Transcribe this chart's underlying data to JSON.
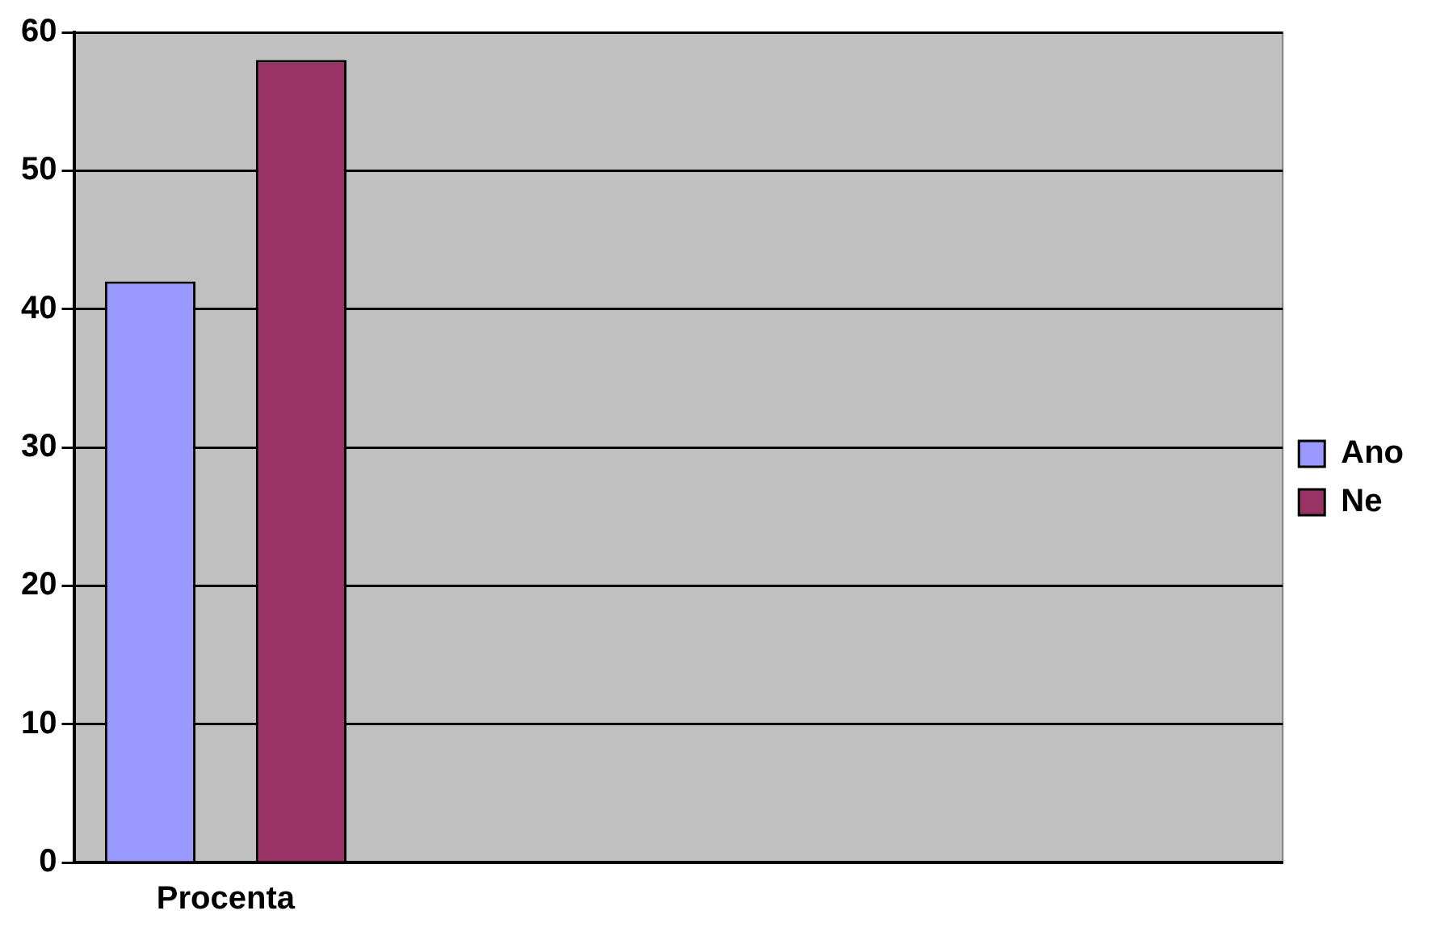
{
  "chart_data": {
    "type": "bar",
    "categories": [
      "Procenta",
      null,
      null,
      null
    ],
    "series": [
      {
        "name": "Ano",
        "color": "#9999ff",
        "values": [
          42,
          null,
          null,
          null
        ]
      },
      {
        "name": "Ne",
        "color": "#993366",
        "values": [
          58,
          null,
          null,
          null
        ]
      }
    ],
    "ylim": [
      0,
      60
    ],
    "yticks": [
      0,
      10,
      20,
      30,
      40,
      50,
      60
    ],
    "grid": "y",
    "legend": "right"
  }
}
